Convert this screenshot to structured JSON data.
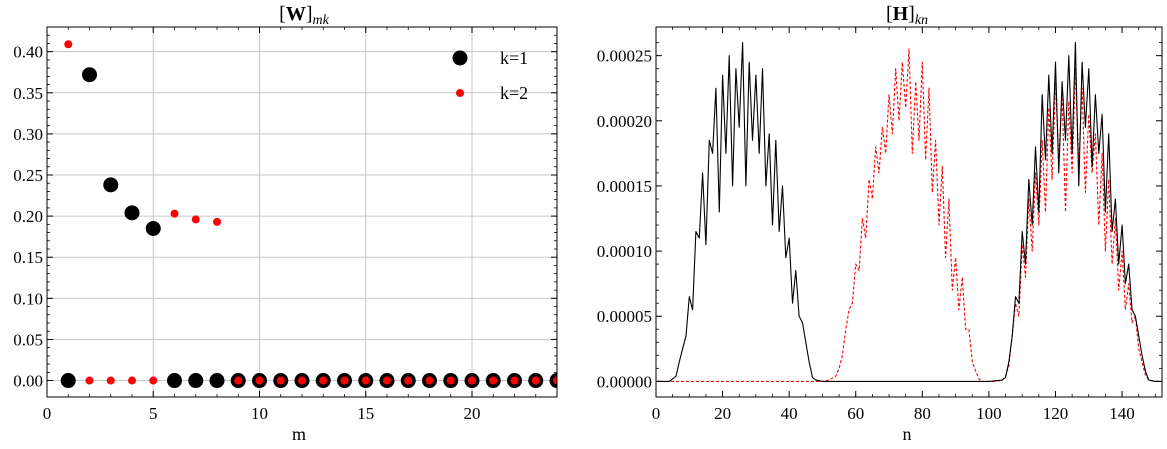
{
  "chart_data": [
    {
      "type": "scatter",
      "title": {
        "bracket_open": "[",
        "symbol": "W",
        "bracket_close": "]",
        "subscript": "mk"
      },
      "xlabel": "m",
      "ylabel": "",
      "xlim": [
        0,
        24
      ],
      "ylim": [
        -0.02,
        0.43
      ],
      "xticks": [
        0,
        5,
        10,
        15,
        20
      ],
      "yticks": [
        0.0,
        0.05,
        0.1,
        0.15,
        0.2,
        0.25,
        0.3,
        0.35,
        0.4
      ],
      "xtick_labels": [
        "0",
        "5",
        "10",
        "15",
        "20"
      ],
      "ytick_labels": [
        "0.00",
        "0.05",
        "0.10",
        "0.15",
        "0.20",
        "0.25",
        "0.30",
        "0.35",
        "0.40"
      ],
      "grid": true,
      "legend_position": "top-right",
      "series": [
        {
          "name": "k=1",
          "color": "#000000",
          "marker": "large-circle",
          "x": [
            1,
            2,
            3,
            4,
            5,
            6,
            7,
            8,
            9,
            10,
            11,
            12,
            13,
            14,
            15,
            16,
            17,
            18,
            19,
            20,
            21,
            22,
            23,
            24
          ],
          "y": [
            0.0,
            0.372,
            0.238,
            0.204,
            0.185,
            0.0,
            0.0,
            0.0,
            0.0,
            0.0,
            0.0,
            0.0,
            0.0,
            0.0,
            0.0,
            0.0,
            0.0,
            0.0,
            0.0,
            0.0,
            0.0,
            0.0,
            0.0,
            0.0
          ]
        },
        {
          "name": "k=2",
          "color": "#ff0000",
          "marker": "small-circle",
          "x": [
            1,
            2,
            3,
            4,
            5,
            6,
            7,
            8,
            9,
            10,
            11,
            12,
            13,
            14,
            15,
            16,
            17,
            18,
            19,
            20,
            21,
            22,
            23,
            24
          ],
          "y": [
            0.409,
            0.0,
            0.0,
            0.0,
            0.0,
            0.203,
            0.196,
            0.193,
            0.0,
            0.0,
            0.0,
            0.0,
            0.0,
            0.0,
            0.0,
            0.0,
            0.0,
            0.0,
            0.0,
            0.0,
            0.0,
            0.0,
            0.0,
            0.0
          ]
        }
      ]
    },
    {
      "type": "line",
      "title": {
        "bracket_open": "[",
        "symbol": "H",
        "bracket_close": "]",
        "subscript": "kn"
      },
      "xlabel": "n",
      "ylabel": "",
      "xlim": [
        0,
        152
      ],
      "ylim": [
        -1.2e-05,
        0.000272
      ],
      "xticks": [
        0,
        20,
        40,
        60,
        80,
        100,
        120,
        140
      ],
      "yticks": [
        0.0,
        5e-05,
        0.0001,
        0.00015,
        0.0002,
        0.00025
      ],
      "xtick_labels": [
        "0",
        "20",
        "40",
        "60",
        "80",
        "100",
        "120",
        "140"
      ],
      "ytick_labels": [
        "0.00000",
        "0.00005",
        "0.00010",
        "0.00015",
        "0.00020",
        "0.00025"
      ],
      "grid": false,
      "series": [
        {
          "name": "",
          "color": "#000000",
          "style": "solid",
          "x": [
            0,
            2,
            4,
            6,
            7,
            8,
            9,
            10,
            11,
            12,
            13,
            14,
            15,
            16,
            17,
            18,
            19,
            20,
            21,
            22,
            23,
            24,
            25,
            26,
            27,
            28,
            29,
            30,
            31,
            32,
            33,
            34,
            35,
            36,
            37,
            38,
            39,
            40,
            41,
            42,
            43,
            44,
            45,
            46,
            47,
            48,
            50,
            60,
            80,
            100,
            104,
            105,
            106,
            107,
            108,
            109,
            110,
            111,
            112,
            113,
            114,
            115,
            116,
            117,
            118,
            119,
            120,
            121,
            122,
            123,
            124,
            125,
            126,
            127,
            128,
            129,
            130,
            131,
            132,
            133,
            134,
            135,
            136,
            137,
            138,
            139,
            140,
            141,
            142,
            143,
            144,
            145,
            146,
            147,
            148,
            150,
            152
          ],
          "y": [
            0,
            0,
            0,
            4e-06,
            1.5e-05,
            2.5e-05,
            3.5e-05,
            6.5e-05,
            5.5e-05,
            0.000115,
            0.00011,
            0.00016,
            0.000105,
            0.000185,
            0.000175,
            0.000225,
            0.00013,
            0.000235,
            0.000175,
            0.00025,
            0.00015,
            0.00024,
            0.000195,
            0.00026,
            0.00015,
            0.000245,
            0.000185,
            0.000235,
            0.000175,
            0.00024,
            0.00015,
            0.00019,
            0.00012,
            0.000185,
            0.000115,
            0.00015,
            9.5e-05,
            0.00011,
            6e-05,
            8.5e-05,
            5e-05,
            4.5e-05,
            3e-05,
            1.5e-05,
            3e-06,
            1e-06,
            0,
            0,
            0,
            0,
            1e-06,
            3e-06,
            1.5e-05,
            3.5e-05,
            6.5e-05,
            6e-05,
            0.000115,
            9e-05,
            0.000155,
            0.00012,
            0.00018,
            0.00013,
            0.00022,
            0.00017,
            0.000235,
            0.000175,
            0.000245,
            0.00016,
            0.00023,
            0.000185,
            0.00025,
            0.000175,
            0.00026,
            0.00015,
            0.000245,
            0.000195,
            0.00024,
            0.000165,
            0.00022,
            0.000175,
            0.000205,
            0.00013,
            0.00019,
            0.000115,
            0.00014,
            9e-05,
            0.00012,
            7.5e-05,
            9e-05,
            5.5e-05,
            5e-05,
            3.5e-05,
            2e-05,
            8e-06,
            1e-06,
            0,
            0
          ]
        },
        {
          "name": "",
          "color": "#ff0000",
          "style": "dashed",
          "x": [
            0,
            20,
            40,
            50,
            52,
            54,
            55,
            56,
            57,
            58,
            59,
            60,
            61,
            62,
            63,
            64,
            65,
            66,
            67,
            68,
            69,
            70,
            71,
            72,
            73,
            74,
            75,
            76,
            77,
            78,
            79,
            80,
            81,
            82,
            83,
            84,
            85,
            86,
            87,
            88,
            89,
            90,
            91,
            92,
            93,
            94,
            95,
            96,
            97,
            98,
            99,
            100,
            102,
            104,
            105,
            106,
            107,
            108,
            109,
            110,
            111,
            112,
            113,
            114,
            115,
            116,
            117,
            118,
            119,
            120,
            121,
            122,
            123,
            124,
            125,
            126,
            127,
            128,
            129,
            130,
            131,
            132,
            133,
            134,
            135,
            136,
            137,
            138,
            139,
            140,
            141,
            142,
            143,
            144,
            145,
            146,
            147,
            148,
            150,
            152
          ],
          "y": [
            0,
            0,
            0,
            0,
            1e-06,
            4e-06,
            1e-05,
            2e-05,
            4e-05,
            5.5e-05,
            6e-05,
            9e-05,
            8.5e-05,
            0.000125,
            0.00011,
            0.000155,
            0.00014,
            0.00018,
            0.00016,
            0.000195,
            0.000175,
            0.00022,
            0.00019,
            0.00024,
            0.0002,
            0.000245,
            0.00021,
            0.000255,
            0.000175,
            0.00023,
            0.000185,
            0.000245,
            0.00017,
            0.000225,
            0.000145,
            0.000185,
            0.00012,
            0.000165,
            9.5e-05,
            0.00014,
            7e-05,
            9.5e-05,
            5.5e-05,
            8e-05,
            4e-05,
            4e-05,
            1.5e-05,
            8e-06,
            2e-06,
            0,
            0,
            0,
            0,
            1e-06,
            4e-06,
            1.2e-05,
            3.5e-05,
            6e-05,
            5e-05,
            0.000105,
            8e-05,
            0.00014,
            0.0001,
            0.00016,
            0.00012,
            0.000185,
            0.00013,
            0.00021,
            0.000155,
            0.00023,
            0.00017,
            0.00022,
            0.00013,
            0.000215,
            0.00016,
            0.00024,
            0.000165,
            0.000225,
            0.000145,
            0.000205,
            0.00016,
            0.00019,
            0.00012,
            0.000175,
            0.0001,
            0.000155,
            9e-05,
            0.000125,
            7e-05,
            0.0001,
            5.5e-05,
            7.5e-05,
            4.5e-05,
            5e-05,
            2.5e-05,
            1.5e-05,
            5e-06,
            1e-06,
            0,
            0
          ]
        }
      ]
    }
  ]
}
